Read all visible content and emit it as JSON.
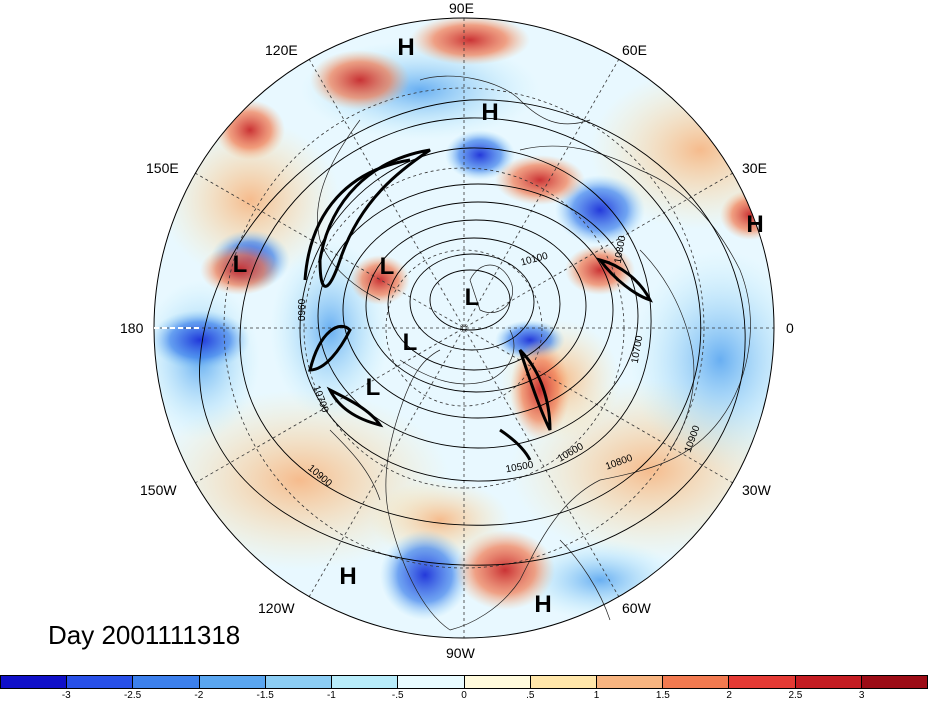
{
  "map": {
    "projection": "north-polar-stereographic",
    "longitude_labels": [
      {
        "id": "lon-90e",
        "text": "90E"
      },
      {
        "id": "lon-60e",
        "text": "60E"
      },
      {
        "id": "lon-30e",
        "text": "30E"
      },
      {
        "id": "lon-0",
        "text": "0"
      },
      {
        "id": "lon-30w",
        "text": "30W"
      },
      {
        "id": "lon-60w",
        "text": "60W"
      },
      {
        "id": "lon-90w",
        "text": "90W"
      },
      {
        "id": "lon-120w",
        "text": "120W"
      },
      {
        "id": "lon-150w",
        "text": "150W"
      },
      {
        "id": "lon-180",
        "text": "180"
      },
      {
        "id": "lon-150e",
        "text": "150E"
      },
      {
        "id": "lon-120e",
        "text": "120E"
      }
    ],
    "pressure_markers": [
      {
        "type": "H"
      },
      {
        "type": "H"
      },
      {
        "type": "H"
      },
      {
        "type": "H"
      },
      {
        "type": "H"
      },
      {
        "type": "L"
      },
      {
        "type": "L"
      },
      {
        "type": "L"
      },
      {
        "type": "L"
      },
      {
        "type": "L"
      }
    ],
    "contour_labels": [
      "10100",
      "10800",
      "10700",
      "0960",
      "10700",
      "10900",
      "10500",
      "10600",
      "10800",
      "10900"
    ],
    "colors": {
      "strong_cold": "#1a2fd8",
      "cold": "#5aa6ea",
      "neutral_light": "#e8f8ff",
      "warm": "#f2a97a",
      "strong_warm": "#c8282a"
    }
  },
  "title": {
    "day_label": "Day 2001111318"
  },
  "colorbar": {
    "ticks": [
      "-3",
      "-2.5",
      "-2",
      "-1.5",
      "-1",
      "-.5",
      "0",
      ".5",
      "1",
      "1.5",
      "2",
      "2.5",
      "3"
    ],
    "colors": [
      "#1010c8",
      "#2850e8",
      "#3c80ec",
      "#5aa6f0",
      "#8ccdf4",
      "#b8ecfa",
      "#e8fbff",
      "#fffadc",
      "#ffe6aa",
      "#f7b480",
      "#f27a50",
      "#e43a34",
      "#c41c22",
      "#9c0c16"
    ]
  }
}
